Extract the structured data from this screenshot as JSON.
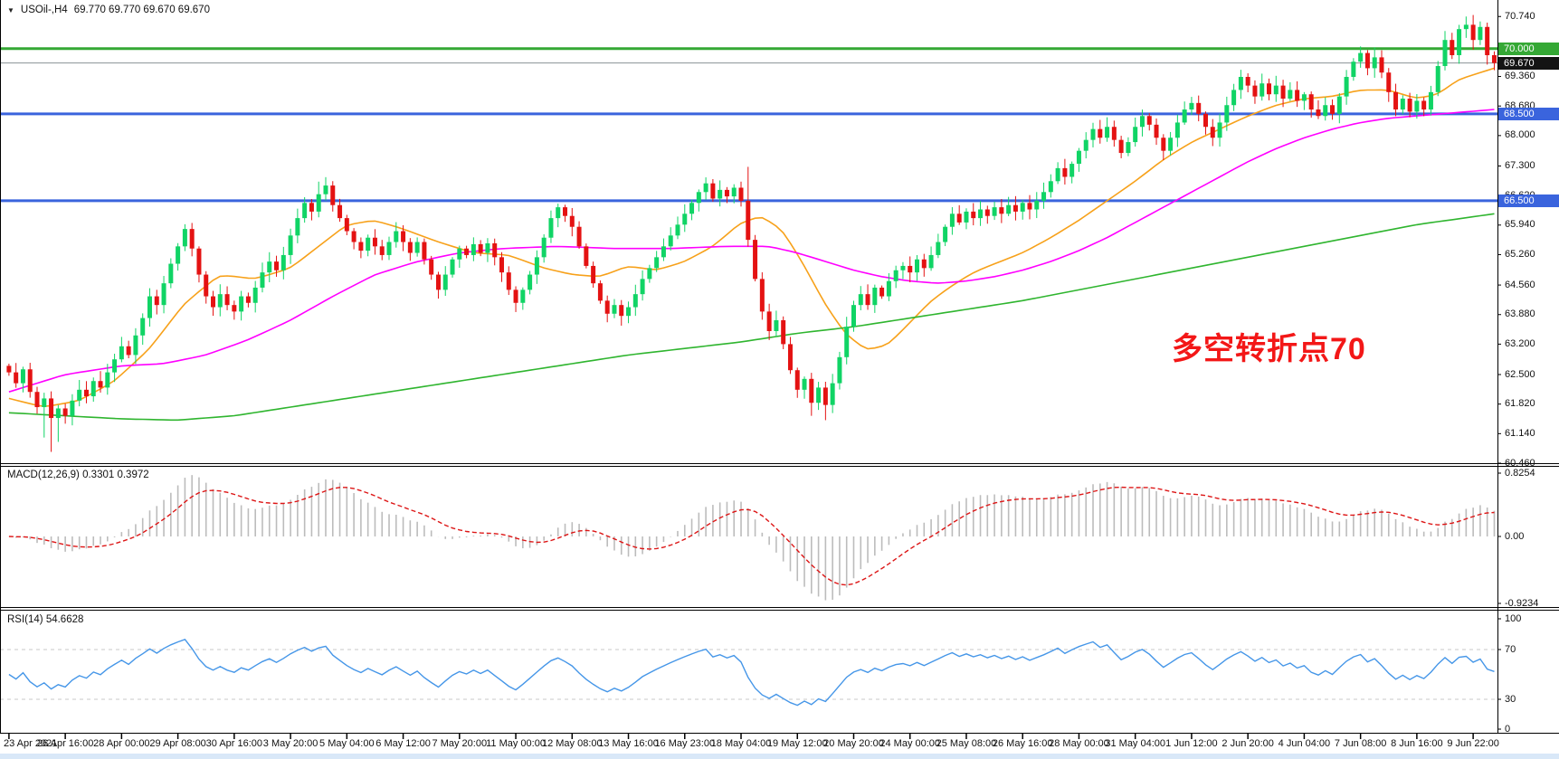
{
  "header": {
    "dropdown_icon": "▼",
    "symbol": "USOil-,H4",
    "ohlc": "69.770 69.770 69.670 69.670"
  },
  "annotation": {
    "text": "多空转折点70",
    "color": "#f31717"
  },
  "macd_panel": {
    "label": "MACD(12,26,9) 0.3301 0.3972"
  },
  "rsi_panel": {
    "label": "RSI(14) 54.6628"
  },
  "price_axis": {
    "regular": [
      {
        "text": "70.740",
        "price": 70.74
      },
      {
        "text": "69.360",
        "price": 69.36
      },
      {
        "text": "68.680",
        "price": 68.68
      },
      {
        "text": "68.000",
        "price": 68.0
      },
      {
        "text": "67.300",
        "price": 67.3
      },
      {
        "text": "66.620",
        "price": 66.62
      },
      {
        "text": "65.940",
        "price": 65.94
      },
      {
        "text": "65.260",
        "price": 65.26
      },
      {
        "text": "64.560",
        "price": 64.56
      },
      {
        "text": "63.880",
        "price": 63.88
      },
      {
        "text": "63.200",
        "price": 63.2
      },
      {
        "text": "62.500",
        "price": 62.5
      },
      {
        "text": "61.820",
        "price": 61.82
      },
      {
        "text": "61.140",
        "price": 61.14
      },
      {
        "text": "60.460",
        "price": 60.46
      }
    ],
    "special": [
      {
        "text": "70.000",
        "price": 70.0,
        "bg": "#35a835",
        "fg": "#ffffff"
      },
      {
        "text": "69.670",
        "price": 69.67,
        "bg": "#141414",
        "fg": "#ffffff"
      },
      {
        "text": "68.500",
        "price": 68.5,
        "bg": "#3a64dd",
        "fg": "#ffffff"
      },
      {
        "text": "66.500",
        "price": 66.5,
        "bg": "#3a64dd",
        "fg": "#ffffff"
      }
    ]
  },
  "time_axis": {
    "labels": [
      "23 Apr 2021",
      "26 Apr 16:00",
      "28 Apr 00:00",
      "29 Apr 08:00",
      "30 Apr 16:00",
      "3 May 20:00",
      "5 May 04:00",
      "6 May 12:00",
      "7 May 20:00",
      "11 May 00:00",
      "12 May 08:00",
      "13 May 16:00",
      "16 May 23:00",
      "18 May 04:00",
      "19 May 12:00",
      "20 May 20:00",
      "24 May 00:00",
      "25 May 08:00",
      "26 May 16:00",
      "28 May 00:00",
      "31 May 04:00",
      "1 Jun 12:00",
      "2 Jun 20:00",
      "4 Jun 04:00",
      "7 Jun 08:00",
      "8 Jun 16:00",
      "9 Jun 22:00"
    ]
  },
  "chart_data": {
    "type": "candlestick",
    "symbol": "USOil",
    "timeframe": "H4",
    "title": "USOil-,H4 69.770 69.770 69.670 69.670",
    "ylim": [
      60.46,
      71.12
    ],
    "bars": 212,
    "closes": [
      62.55,
      62.3,
      62.62,
      62.1,
      61.75,
      61.95,
      61.5,
      61.72,
      61.55,
      61.9,
      62.15,
      62.0,
      62.35,
      62.2,
      62.55,
      62.85,
      63.15,
      62.95,
      63.4,
      63.8,
      64.3,
      64.1,
      64.6,
      65.05,
      65.45,
      65.85,
      65.4,
      64.8,
      64.3,
      64.05,
      64.35,
      64.1,
      63.95,
      64.3,
      64.15,
      64.5,
      64.85,
      65.1,
      64.9,
      65.25,
      65.7,
      66.1,
      66.45,
      66.25,
      66.65,
      66.85,
      66.4,
      66.1,
      65.8,
      65.55,
      65.35,
      65.65,
      65.45,
      65.25,
      65.55,
      65.8,
      65.55,
      65.3,
      65.55,
      65.15,
      64.8,
      64.45,
      64.8,
      65.15,
      65.4,
      65.25,
      65.5,
      65.3,
      65.52,
      65.2,
      64.85,
      64.45,
      64.15,
      64.45,
      64.8,
      65.2,
      65.65,
      66.1,
      66.35,
      66.15,
      65.9,
      65.45,
      65.0,
      64.6,
      64.2,
      63.9,
      64.1,
      63.85,
      64.05,
      64.35,
      64.7,
      64.95,
      65.2,
      65.45,
      65.7,
      65.95,
      66.2,
      66.45,
      66.7,
      66.9,
      66.55,
      66.75,
      66.6,
      66.8,
      66.5,
      65.6,
      64.7,
      63.95,
      63.5,
      63.75,
      63.2,
      62.6,
      62.15,
      62.4,
      61.85,
      62.2,
      61.8,
      62.3,
      62.9,
      63.6,
      64.1,
      64.35,
      64.1,
      64.5,
      64.3,
      64.65,
      64.9,
      65.0,
      64.85,
      65.15,
      64.95,
      65.25,
      65.55,
      65.9,
      66.2,
      66.0,
      66.25,
      66.1,
      66.3,
      66.15,
      66.35,
      66.2,
      66.4,
      66.25,
      66.45,
      66.3,
      66.5,
      66.7,
      66.95,
      67.25,
      67.05,
      67.35,
      67.65,
      67.9,
      68.15,
      67.95,
      68.2,
      67.9,
      67.6,
      67.85,
      68.2,
      68.45,
      68.25,
      67.95,
      67.65,
      67.95,
      68.3,
      68.6,
      68.75,
      68.5,
      68.2,
      67.95,
      68.3,
      68.7,
      69.05,
      69.35,
      69.15,
      68.9,
      69.2,
      68.95,
      69.15,
      68.85,
      69.05,
      68.8,
      68.95,
      68.6,
      68.45,
      68.7,
      68.5,
      68.9,
      69.35,
      69.7,
      69.9,
      69.55,
      69.8,
      69.45,
      69.0,
      68.6,
      68.85,
      68.55,
      68.8,
      68.6,
      69.0,
      69.6,
      70.2,
      69.85,
      70.45,
      70.55,
      70.2,
      70.5,
      69.85,
      69.67
    ],
    "wick_high_overrides": {
      "44": 66.94,
      "105": 67.28,
      "207": 70.74
    },
    "wick_low_overrides": {
      "5": 61.05,
      "6": 60.72,
      "7": 60.95,
      "114": 61.55,
      "116": 61.45,
      "186": 68.38,
      "199": 68.42
    },
    "candle_colors": {
      "bull": "#10d465",
      "bear": "#e41212"
    },
    "moving_averages": [
      {
        "name": "fast-ma",
        "color": "#f7a11a",
        "anchors": [
          [
            0,
            61.95
          ],
          [
            5,
            61.75
          ],
          [
            10,
            61.9
          ],
          [
            15,
            62.35
          ],
          [
            20,
            63.1
          ],
          [
            25,
            64.15
          ],
          [
            30,
            64.8
          ],
          [
            35,
            64.7
          ],
          [
            40,
            64.95
          ],
          [
            44,
            65.45
          ],
          [
            48,
            65.95
          ],
          [
            52,
            66.05
          ],
          [
            56,
            65.85
          ],
          [
            61,
            65.55
          ],
          [
            66,
            65.3
          ],
          [
            71,
            65.25
          ],
          [
            76,
            64.95
          ],
          [
            80,
            64.8
          ],
          [
            84,
            64.75
          ],
          [
            88,
            65.0
          ],
          [
            92,
            64.9
          ],
          [
            96,
            65.1
          ],
          [
            100,
            65.45
          ],
          [
            104,
            66.0
          ],
          [
            107,
            66.15
          ],
          [
            110,
            65.8
          ],
          [
            113,
            65.0
          ],
          [
            116,
            64.1
          ],
          [
            119,
            63.4
          ],
          [
            122,
            63.05
          ],
          [
            125,
            63.2
          ],
          [
            128,
            63.7
          ],
          [
            131,
            64.2
          ],
          [
            134,
            64.55
          ],
          [
            137,
            64.85
          ],
          [
            140,
            65.05
          ],
          [
            144,
            65.3
          ],
          [
            148,
            65.65
          ],
          [
            152,
            66.05
          ],
          [
            156,
            66.5
          ],
          [
            160,
            66.95
          ],
          [
            164,
            67.45
          ],
          [
            168,
            67.85
          ],
          [
            172,
            68.15
          ],
          [
            176,
            68.45
          ],
          [
            180,
            68.7
          ],
          [
            184,
            68.85
          ],
          [
            188,
            68.9
          ],
          [
            192,
            69.05
          ],
          [
            196,
            69.05
          ],
          [
            200,
            68.85
          ],
          [
            203,
            68.95
          ],
          [
            206,
            69.3
          ],
          [
            211,
            69.55
          ]
        ]
      },
      {
        "name": "medium-ma",
        "color": "#ff00ff",
        "anchors": [
          [
            0,
            62.1
          ],
          [
            8,
            62.5
          ],
          [
            16,
            62.7
          ],
          [
            22,
            62.75
          ],
          [
            28,
            62.95
          ],
          [
            34,
            63.3
          ],
          [
            40,
            63.75
          ],
          [
            46,
            64.3
          ],
          [
            52,
            64.8
          ],
          [
            58,
            65.1
          ],
          [
            64,
            65.3
          ],
          [
            70,
            65.4
          ],
          [
            78,
            65.45
          ],
          [
            86,
            65.4
          ],
          [
            94,
            65.4
          ],
          [
            102,
            65.45
          ],
          [
            108,
            65.45
          ],
          [
            112,
            65.3
          ],
          [
            116,
            65.1
          ],
          [
            120,
            64.9
          ],
          [
            124,
            64.75
          ],
          [
            128,
            64.65
          ],
          [
            132,
            64.6
          ],
          [
            136,
            64.65
          ],
          [
            140,
            64.75
          ],
          [
            144,
            64.9
          ],
          [
            148,
            65.1
          ],
          [
            152,
            65.35
          ],
          [
            156,
            65.65
          ],
          [
            160,
            66.0
          ],
          [
            164,
            66.35
          ],
          [
            168,
            66.7
          ],
          [
            172,
            67.05
          ],
          [
            176,
            67.4
          ],
          [
            180,
            67.7
          ],
          [
            184,
            67.95
          ],
          [
            188,
            68.15
          ],
          [
            192,
            68.3
          ],
          [
            196,
            68.4
          ],
          [
            202,
            68.48
          ],
          [
            211,
            68.6
          ]
        ]
      },
      {
        "name": "slow-ma",
        "color": "#2fb52f",
        "anchors": [
          [
            0,
            61.62
          ],
          [
            8,
            61.55
          ],
          [
            16,
            61.48
          ],
          [
            24,
            61.45
          ],
          [
            32,
            61.55
          ],
          [
            40,
            61.75
          ],
          [
            48,
            61.95
          ],
          [
            56,
            62.15
          ],
          [
            64,
            62.35
          ],
          [
            72,
            62.55
          ],
          [
            80,
            62.75
          ],
          [
            88,
            62.95
          ],
          [
            96,
            63.1
          ],
          [
            104,
            63.25
          ],
          [
            112,
            63.45
          ],
          [
            120,
            63.6
          ],
          [
            128,
            63.8
          ],
          [
            136,
            64.0
          ],
          [
            144,
            64.2
          ],
          [
            152,
            64.45
          ],
          [
            160,
            64.7
          ],
          [
            168,
            64.95
          ],
          [
            176,
            65.2
          ],
          [
            184,
            65.45
          ],
          [
            192,
            65.7
          ],
          [
            200,
            65.95
          ],
          [
            211,
            66.2
          ]
        ]
      }
    ],
    "horizontal_lines": [
      {
        "price": 70.0,
        "color": "#35a835",
        "width": 3,
        "label": "70.000"
      },
      {
        "price": 69.67,
        "color": "#8a9396",
        "width": 1,
        "label": "69.670"
      },
      {
        "price": 68.5,
        "color": "#3a64dd",
        "width": 3,
        "label": "68.500"
      },
      {
        "price": 66.5,
        "color": "#3a64dd",
        "width": 3,
        "label": "66.500"
      }
    ],
    "macd": {
      "params": [
        12,
        26,
        9
      ],
      "values_display": [
        0.3301,
        0.3972
      ],
      "axis": [
        0.8254,
        0.0,
        -0.9234
      ],
      "histogram_color": "#bcbcbc",
      "signal_color": "#dd1616"
    },
    "rsi": {
      "period": 14,
      "value_display": 54.6628,
      "levels": [
        70,
        30
      ],
      "axis": [
        100,
        70,
        30,
        0
      ],
      "line_color": "#4596e8"
    }
  }
}
